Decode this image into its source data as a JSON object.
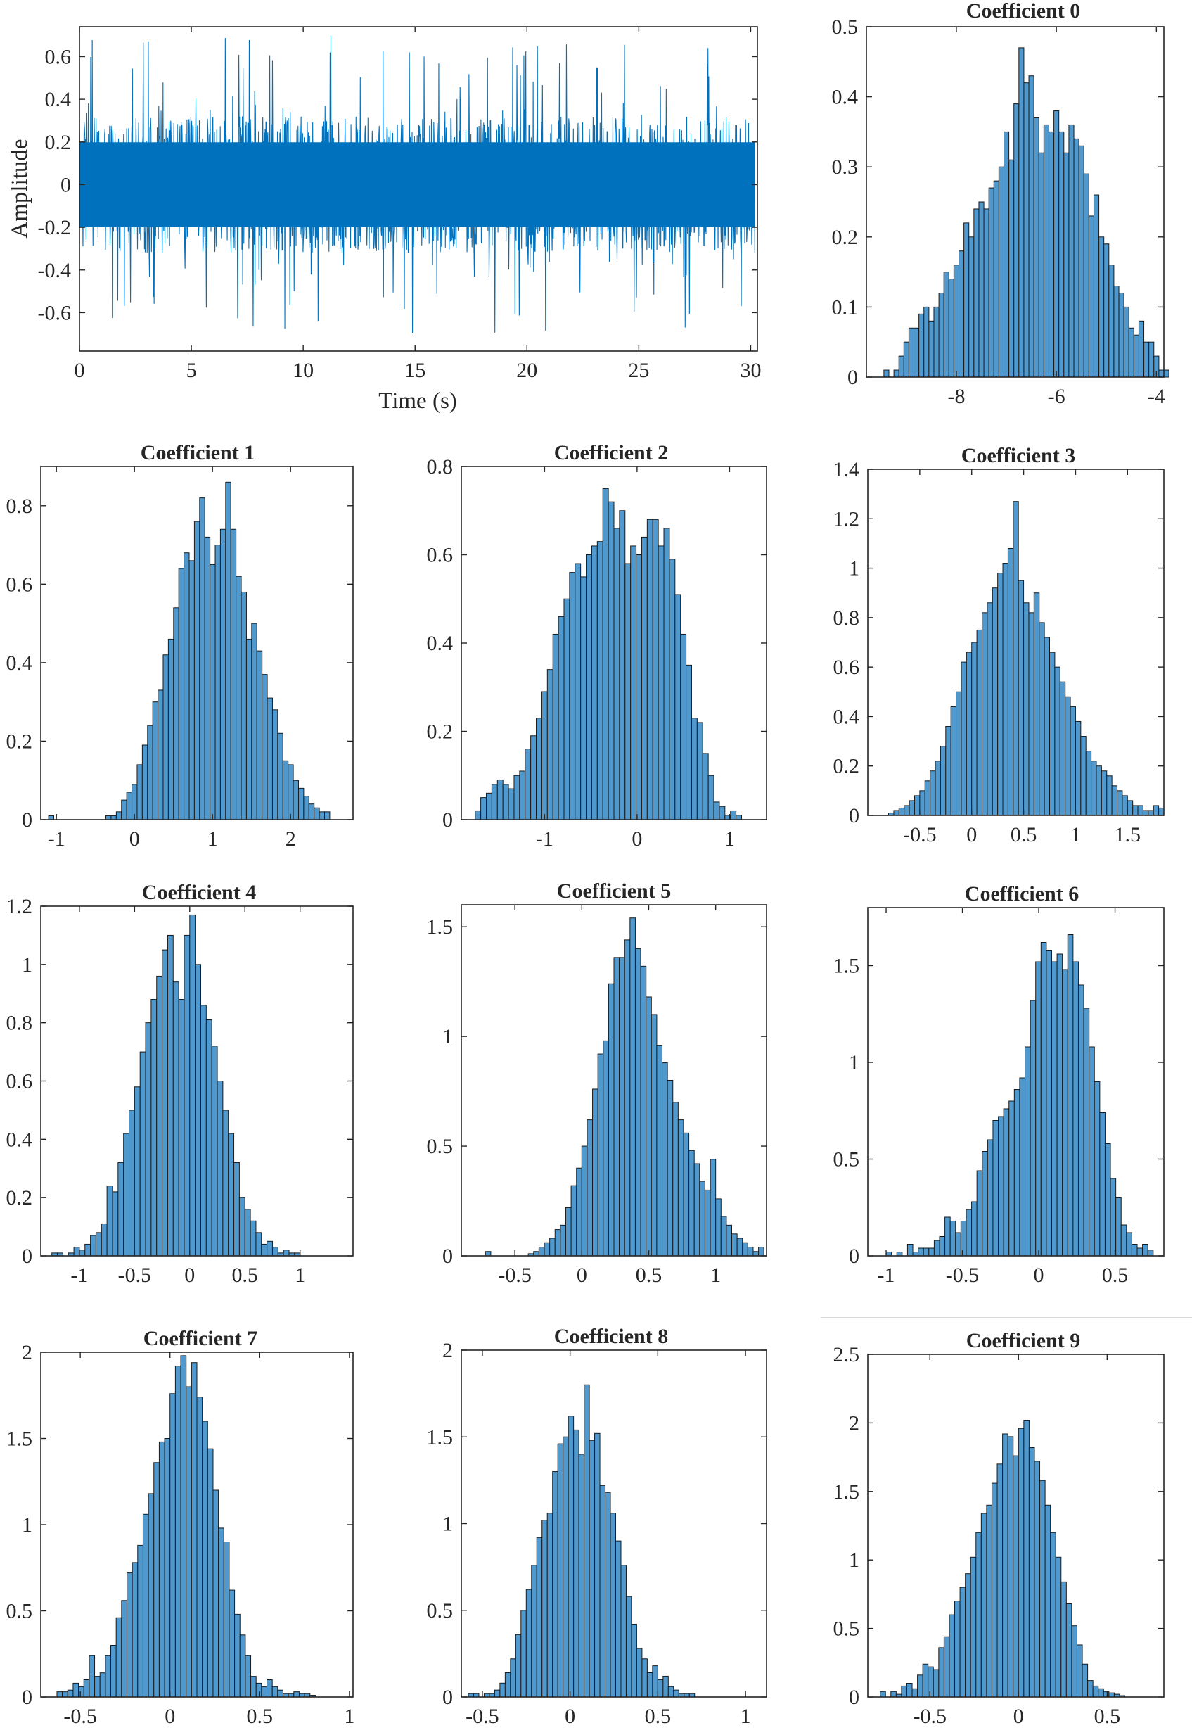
{
  "colors": {
    "bar_fill": "#4f99cf",
    "signal": "#0072bd",
    "edge": "#1a1a1a"
  },
  "chart_data": [
    {
      "type": "line",
      "id": "signal",
      "title": "",
      "xlabel": "Time (s)",
      "ylabel": "Amplitude",
      "xlim": [
        0,
        30.3
      ],
      "ylim": [
        -0.78,
        0.74
      ],
      "xticks": [
        0,
        5,
        10,
        15,
        20,
        25,
        30
      ],
      "xtick_labels": [
        "0",
        "5",
        "10",
        "15",
        "20",
        "25",
        "30"
      ],
      "yticks": [
        -0.6,
        -0.4,
        -0.2,
        0,
        0.2,
        0.4,
        0.6
      ],
      "ytick_labels": [
        "-0.6",
        "-0.4",
        "-0.2",
        "0",
        "0.2",
        "0.4",
        "0.6"
      ],
      "core_amplitude": 0.32,
      "peak_amplitude": 0.7
    },
    {
      "type": "bar",
      "id": "c0",
      "title": "Coefficient 0",
      "xlim": [
        -9.8,
        -3.85
      ],
      "ylim": [
        0,
        0.5
      ],
      "bin_start": -9.45,
      "bin_width": 0.1,
      "values": [
        0.01,
        0,
        0.01,
        0.03,
        0.05,
        0.07,
        0.07,
        0.09,
        0.1,
        0.08,
        0.1,
        0.12,
        0.15,
        0.14,
        0.16,
        0.18,
        0.22,
        0.2,
        0.24,
        0.25,
        0.24,
        0.27,
        0.28,
        0.3,
        0.35,
        0.31,
        0.39,
        0.47,
        0.42,
        0.43,
        0.37,
        0.32,
        0.36,
        0.35,
        0.38,
        0.35,
        0.32,
        0.36,
        0.34,
        0.33,
        0.29,
        0.23,
        0.26,
        0.2,
        0.19,
        0.16,
        0.13,
        0.12,
        0.1,
        0.07,
        0.06,
        0.08,
        0.05,
        0.05,
        0.03,
        0.01,
        0.01
      ],
      "xticks": [
        -8,
        -6,
        -4
      ],
      "xtick_labels": [
        "-8",
        "-6",
        "-4"
      ],
      "yticks": [
        0,
        0.1,
        0.2,
        0.3,
        0.4,
        0.5
      ],
      "ytick_labels": [
        "0",
        "0.1",
        "0.2",
        "0.3",
        "0.4",
        "0.5"
      ]
    },
    {
      "type": "bar",
      "id": "c1",
      "title": "Coefficient 1",
      "xlim": [
        -1.2,
        2.8
      ],
      "ylim": [
        0,
        0.9
      ],
      "bin_start": -1.1,
      "bin_width": 0.0667,
      "values": [
        0.01,
        0,
        0,
        0,
        0,
        0,
        0,
        0,
        0,
        0,
        0,
        0.01,
        0.01,
        0.02,
        0.05,
        0.07,
        0.09,
        0.14,
        0.19,
        0.24,
        0.3,
        0.33,
        0.42,
        0.46,
        0.54,
        0.64,
        0.68,
        0.66,
        0.76,
        0.82,
        0.72,
        0.65,
        0.7,
        0.74,
        0.86,
        0.74,
        0.62,
        0.58,
        0.46,
        0.5,
        0.43,
        0.37,
        0.31,
        0.28,
        0.22,
        0.15,
        0.14,
        0.1,
        0.08,
        0.06,
        0.04,
        0.03,
        0.02,
        0.02
      ],
      "xticks": [
        -1,
        0,
        1,
        2
      ],
      "xtick_labels": [
        "-1",
        "0",
        "1",
        "2"
      ],
      "yticks": [
        0,
        0.2,
        0.4,
        0.6,
        0.8
      ],
      "ytick_labels": [
        "0",
        "0.2",
        "0.4",
        "0.6",
        "0.8"
      ]
    },
    {
      "type": "bar",
      "id": "c2",
      "title": "Coefficient 2",
      "xlim": [
        -1.9,
        1.4
      ],
      "ylim": [
        0,
        0.8
      ],
      "bin_start": -1.75,
      "bin_width": 0.06,
      "values": [
        0.02,
        0.05,
        0.06,
        0.08,
        0.09,
        0.08,
        0.07,
        0.1,
        0.11,
        0.16,
        0.19,
        0.23,
        0.29,
        0.34,
        0.42,
        0.46,
        0.5,
        0.56,
        0.58,
        0.55,
        0.6,
        0.62,
        0.63,
        0.75,
        0.72,
        0.66,
        0.7,
        0.58,
        0.62,
        0.6,
        0.64,
        0.68,
        0.68,
        0.62,
        0.66,
        0.59,
        0.51,
        0.42,
        0.35,
        0.23,
        0.22,
        0.15,
        0.1,
        0.04,
        0.03,
        0.01,
        0.02,
        0.01
      ],
      "xticks": [
        -1,
        0,
        1
      ],
      "xtick_labels": [
        "-1",
        "0",
        "1"
      ],
      "yticks": [
        0,
        0.2,
        0.4,
        0.6,
        0.8
      ],
      "ytick_labels": [
        "0",
        "0.2",
        "0.4",
        "0.6",
        "0.8"
      ]
    },
    {
      "type": "bar",
      "id": "c3",
      "title": "Coefficient 3",
      "xlim": [
        -1.0,
        1.85
      ],
      "ylim": [
        0,
        1.4
      ],
      "bin_start": -0.8,
      "bin_width": 0.05,
      "values": [
        0.01,
        0.02,
        0.03,
        0.04,
        0.06,
        0.08,
        0.1,
        0.14,
        0.18,
        0.22,
        0.28,
        0.36,
        0.44,
        0.5,
        0.62,
        0.66,
        0.7,
        0.75,
        0.82,
        0.86,
        0.92,
        0.98,
        1.02,
        1.08,
        1.27,
        0.95,
        0.86,
        0.82,
        0.9,
        0.78,
        0.72,
        0.66,
        0.6,
        0.54,
        0.48,
        0.44,
        0.38,
        0.32,
        0.26,
        0.22,
        0.2,
        0.18,
        0.16,
        0.12,
        0.1,
        0.08,
        0.06,
        0.04,
        0.04,
        0.02,
        0.02,
        0.04,
        0.03
      ],
      "xticks": [
        -0.5,
        0,
        0.5,
        1,
        1.5
      ],
      "xtick_labels": [
        "-0.5",
        "0",
        "0.5",
        "1",
        "1.5"
      ],
      "yticks": [
        0,
        0.2,
        0.4,
        0.6,
        0.8,
        1,
        1.2,
        1.4
      ],
      "ytick_labels": [
        "0",
        "0.2",
        "0.4",
        "0.6",
        "0.8",
        "1",
        "1.2",
        "1.4"
      ]
    },
    {
      "type": "bar",
      "id": "c4",
      "title": "Coefficient 4",
      "xlim": [
        -1.35,
        1.48
      ],
      "ylim": [
        0,
        1.2
      ],
      "bin_start": -1.25,
      "bin_width": 0.05,
      "values": [
        0.01,
        0.01,
        0,
        0.01,
        0.03,
        0.02,
        0.04,
        0.07,
        0.08,
        0.11,
        0.24,
        0.22,
        0.32,
        0.42,
        0.5,
        0.58,
        0.7,
        0.8,
        0.88,
        0.96,
        1.05,
        1.1,
        0.94,
        0.88,
        1.1,
        1.17,
        1.0,
        0.86,
        0.81,
        0.72,
        0.6,
        0.5,
        0.42,
        0.32,
        0.2,
        0.16,
        0.12,
        0.08,
        0.04,
        0.05,
        0.03,
        0.01,
        0.02,
        0.01,
        0.01
      ],
      "xticks": [
        -1,
        -0.5,
        0,
        0.5,
        1
      ],
      "xtick_labels": [
        "-1",
        "-0.5",
        "0",
        "0.5",
        "1"
      ],
      "yticks": [
        0,
        0.2,
        0.4,
        0.6,
        0.8,
        1,
        1.2
      ],
      "ytick_labels": [
        "0",
        "0.2",
        "0.4",
        "0.6",
        "0.8",
        "1",
        "1.2"
      ]
    },
    {
      "type": "bar",
      "id": "c5",
      "title": "Coefficient 5",
      "xlim": [
        -0.9,
        1.38
      ],
      "ylim": [
        0,
        1.6
      ],
      "bin_start": -0.72,
      "bin_width": 0.04,
      "values": [
        0.02,
        0,
        0,
        0,
        0,
        0,
        0,
        0,
        0.01,
        0.02,
        0.04,
        0.06,
        0.08,
        0.12,
        0.14,
        0.22,
        0.32,
        0.4,
        0.5,
        0.62,
        0.76,
        0.92,
        0.98,
        1.24,
        1.36,
        1.36,
        1.44,
        1.54,
        1.4,
        1.32,
        1.18,
        1.1,
        0.96,
        0.88,
        0.8,
        0.7,
        0.62,
        0.56,
        0.48,
        0.42,
        0.34,
        0.3,
        0.44,
        0.26,
        0.18,
        0.14,
        0.1,
        0.08,
        0.06,
        0.04,
        0.02,
        0.04
      ],
      "xticks": [
        -0.5,
        0,
        0.5,
        1
      ],
      "xtick_labels": [
        "-0.5",
        "0",
        "0.5",
        "1"
      ],
      "yticks": [
        0,
        0.5,
        1,
        1.5
      ],
      "ytick_labels": [
        "0",
        "0.5",
        "1",
        "1.5"
      ]
    },
    {
      "type": "bar",
      "id": "c6",
      "title": "Coefficient 6",
      "xlim": [
        -1.12,
        0.82
      ],
      "ylim": [
        0,
        1.8
      ],
      "bin_start": -1.0,
      "bin_width": 0.035,
      "values": [
        0.02,
        0,
        0.02,
        0,
        0.06,
        0.02,
        0.04,
        0.04,
        0.04,
        0.08,
        0.1,
        0.2,
        0.18,
        0.12,
        0.18,
        0.24,
        0.28,
        0.44,
        0.54,
        0.6,
        0.7,
        0.72,
        0.76,
        0.8,
        0.86,
        0.92,
        1.08,
        1.32,
        1.52,
        1.62,
        1.58,
        1.52,
        1.56,
        1.48,
        1.66,
        1.52,
        1.4,
        1.28,
        1.08,
        0.9,
        0.74,
        0.58,
        0.4,
        0.3,
        0.16,
        0.12,
        0.06,
        0.04,
        0.06,
        0.03
      ],
      "xticks": [
        -1,
        -0.5,
        0,
        0.5
      ],
      "xtick_labels": [
        "-1",
        "-0.5",
        "0",
        "0.5"
      ],
      "yticks": [
        0,
        0.5,
        1,
        1.5
      ],
      "ytick_labels": [
        "0",
        "0.5",
        "1",
        "1.5"
      ]
    },
    {
      "type": "bar",
      "id": "c7",
      "title": "Coefficient 7",
      "xlim": [
        -0.72,
        1.02
      ],
      "ylim": [
        0,
        2.0
      ],
      "bin_start": -0.63,
      "bin_width": 0.03,
      "values": [
        0.03,
        0.03,
        0.04,
        0.08,
        0.06,
        0.1,
        0.24,
        0.12,
        0.14,
        0.24,
        0.3,
        0.46,
        0.56,
        0.72,
        0.78,
        0.88,
        1.06,
        1.18,
        1.36,
        1.48,
        1.5,
        1.76,
        1.92,
        1.98,
        1.8,
        1.94,
        1.74,
        1.6,
        1.44,
        1.2,
        0.98,
        0.9,
        0.62,
        0.48,
        0.36,
        0.24,
        0.12,
        0.08,
        0.06,
        0.1,
        0.06,
        0.04,
        0.02,
        0.02,
        0.03,
        0.02,
        0.02,
        0.01
      ],
      "xticks": [
        -0.5,
        0,
        0.5,
        1
      ],
      "xtick_labels": [
        "-0.5",
        "0",
        "0.5",
        "1"
      ],
      "yticks": [
        0,
        0.5,
        1,
        1.5,
        2
      ],
      "ytick_labels": [
        "0",
        "0.5",
        "1",
        "1.5",
        "2"
      ]
    },
    {
      "type": "bar",
      "id": "c8",
      "title": "Coefficient 8",
      "xlim": [
        -0.62,
        1.12
      ],
      "ylim": [
        0,
        2.0
      ],
      "bin_start": -0.58,
      "bin_width": 0.03,
      "values": [
        0.02,
        0.02,
        0,
        0.02,
        0.02,
        0.04,
        0.08,
        0.14,
        0.22,
        0.36,
        0.5,
        0.62,
        0.76,
        0.92,
        1.02,
        1.06,
        1.3,
        1.46,
        1.5,
        1.62,
        1.54,
        1.4,
        1.8,
        1.48,
        1.52,
        1.22,
        1.18,
        1.06,
        0.9,
        0.76,
        0.58,
        0.42,
        0.28,
        0.22,
        0.14,
        0.18,
        0.1,
        0.12,
        0.06,
        0.04,
        0.02,
        0.02,
        0.02
      ],
      "xticks": [
        -0.5,
        0,
        0.5,
        1
      ],
      "xtick_labels": [
        "-0.5",
        "0",
        "0.5",
        "1"
      ],
      "yticks": [
        0,
        0.5,
        1,
        1.5,
        2
      ],
      "ytick_labels": [
        "0",
        "0.5",
        "1",
        "1.5",
        "2"
      ]
    },
    {
      "type": "bar",
      "id": "c9",
      "title": "Coefficient 9",
      "xlim": [
        -0.85,
        0.82
      ],
      "ylim": [
        0,
        2.5
      ],
      "bin_start": -0.78,
      "bin_width": 0.03,
      "values": [
        0.04,
        0,
        0.04,
        0.02,
        0.08,
        0.1,
        0.06,
        0.16,
        0.24,
        0.22,
        0.2,
        0.36,
        0.44,
        0.6,
        0.7,
        0.8,
        0.9,
        1.02,
        1.2,
        1.34,
        1.4,
        1.56,
        1.7,
        1.92,
        1.9,
        1.76,
        1.96,
        2.02,
        1.82,
        1.72,
        1.58,
        1.4,
        1.2,
        1.02,
        0.84,
        0.68,
        0.52,
        0.38,
        0.24,
        0.12,
        0.08,
        0.06,
        0.04,
        0.03,
        0.02,
        0.01
      ],
      "xticks": [
        -0.5,
        0,
        0.5
      ],
      "xtick_labels": [
        "-0.5",
        "0",
        "0.5"
      ],
      "yticks": [
        0,
        0.5,
        1,
        1.5,
        2,
        2.5
      ],
      "ytick_labels": [
        "0",
        "0.5",
        "1",
        "1.5",
        "2",
        "2.5"
      ]
    }
  ]
}
